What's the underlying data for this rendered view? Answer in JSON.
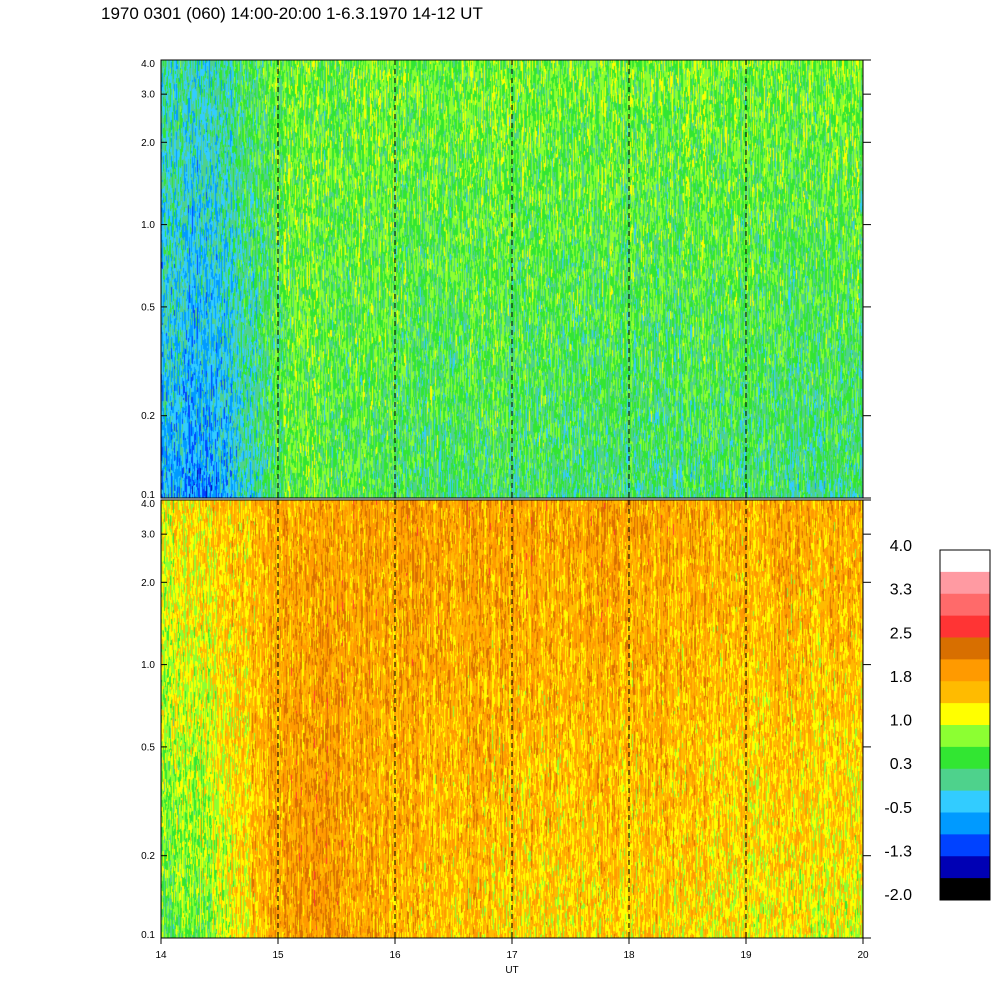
{
  "title": "1970 0301 (060) 14:00-20:00 1-6.3.1970  14-12 UT",
  "chart_data": {
    "type": "heatmap",
    "x_axis": {
      "label": "UT",
      "range": [
        14,
        20
      ],
      "ticks": [
        14,
        15,
        16,
        17,
        18,
        19,
        20
      ],
      "tick_labels": [
        "14",
        "15",
        "16",
        "17",
        "18",
        "19",
        "20"
      ],
      "dashed_gridlines_at": [
        15,
        16,
        17,
        18,
        19
      ]
    },
    "y_axis": {
      "scale": "log",
      "range": [
        0.1,
        4.0
      ],
      "ticks": [
        0.1,
        0.2,
        0.5,
        1.0,
        2.0,
        3.0,
        4.0
      ],
      "tick_labels": [
        "0.1",
        "0.2",
        "0.5",
        "1.0",
        "2.0",
        "3.0",
        "4.0"
      ]
    },
    "panels": [
      {
        "name": "upper",
        "description_levels": "mostly -0.5 to 1.0, lowest (blue) near 14-14.8 UT",
        "level_profile": {
          "x": [
            14.0,
            14.4,
            14.8,
            15.0,
            15.3,
            16.0,
            17.0,
            18.0,
            19.0,
            20.0
          ],
          "low_freq_level": [
            -0.6,
            -0.9,
            -0.2,
            0.3,
            0.6,
            0.2,
            0.2,
            0.1,
            0.1,
            0.0
          ],
          "high_freq_level": [
            0.0,
            -0.2,
            0.3,
            0.5,
            0.6,
            0.6,
            0.6,
            0.6,
            0.6,
            0.6
          ]
        }
      },
      {
        "name": "lower",
        "description_levels": "mostly 1.0 to 2.0, with 0.3 near 14 UT",
        "level_profile": {
          "x": [
            14.0,
            14.4,
            14.8,
            15.0,
            15.3,
            16.0,
            17.0,
            18.0,
            19.0,
            20.0
          ],
          "low_freq_level": [
            0.4,
            0.6,
            1.6,
            1.9,
            2.0,
            1.7,
            1.4,
            1.5,
            1.3,
            1.1
          ],
          "high_freq_level": [
            1.2,
            1.5,
            1.7,
            1.8,
            1.8,
            1.9,
            1.9,
            1.9,
            1.8,
            1.8
          ]
        }
      }
    ],
    "colorbar": {
      "labels": [
        "4.0",
        "3.3",
        "2.5",
        "1.8",
        "1.0",
        "0.3",
        "-0.5",
        "-1.3",
        "-2.0"
      ],
      "colors_top_to_bottom": [
        "#ffffff",
        "#ff9aa2",
        "#ff6a6a",
        "#ff3434",
        "#d86f00",
        "#ff9a00",
        "#ffbb00",
        "#ffff00",
        "#8cff32",
        "#32e632",
        "#4ed28c",
        "#32ccff",
        "#009aff",
        "#0042ff",
        "#0000b4",
        "#000000"
      ]
    }
  }
}
